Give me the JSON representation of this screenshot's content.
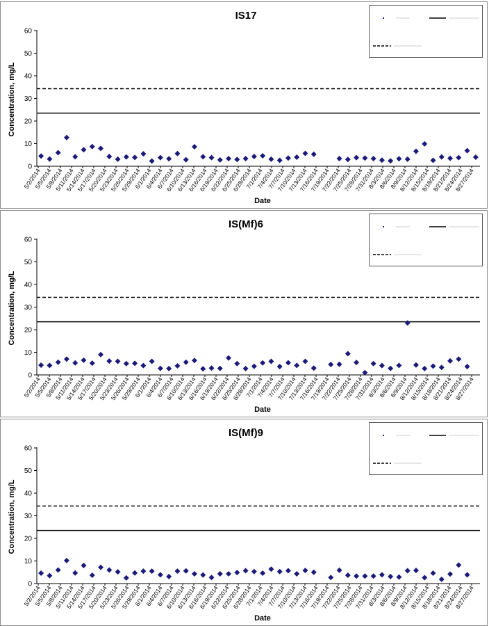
{
  "chart_data": [
    {
      "type": "scatter",
      "title": "IS17",
      "xlabel": "Date",
      "ylabel": "Concentration, mg/L",
      "ylim": [
        0,
        60
      ],
      "yticks": [
        "0",
        "10",
        "20",
        "30",
        "40",
        "50",
        "60"
      ],
      "xticks": [
        "5/2/2014",
        "5/5/2014",
        "5/8/2014",
        "5/11/2014",
        "5/14/2014",
        "5/17/2014",
        "5/20/2014",
        "5/23/2014",
        "5/26/2014",
        "5/29/2014",
        "6/1/2014",
        "6/4/2014",
        "6/7/2014",
        "6/10/2014",
        "6/13/2014",
        "6/16/2014",
        "6/19/2014",
        "6/22/2014",
        "6/25/2014",
        "6/28/2014",
        "7/1/2014",
        "7/4/2014",
        "7/7/2014",
        "7/10/2014",
        "7/13/2014",
        "7/16/2014",
        "7/19/2014",
        "7/22/2014",
        "7/25/2014",
        "7/28/2014",
        "7/31/2014",
        "8/3/2014",
        "8/6/2014",
        "8/9/2014",
        "8/12/2014",
        "8/15/2014",
        "8/18/2014",
        "8/21/2014",
        "8/24/2014",
        "8/27/2014"
      ],
      "legend": {
        "placement": "top-right",
        "entries": [
          "",
          "",
          ""
        ]
      },
      "grid": false,
      "lines": [
        {
          "style": "solid",
          "y": 23.5
        },
        {
          "style": "dashed",
          "y": 34.3
        }
      ],
      "series": [
        {
          "marker": "diamond",
          "color": "#1a1a7a",
          "points": [
            [
              0,
              4.5
            ],
            [
              1,
              3.2
            ],
            [
              2,
              6
            ],
            [
              3,
              12.7
            ],
            [
              4,
              4.2
            ],
            [
              5,
              7.3
            ],
            [
              6,
              8.7
            ],
            [
              7,
              7.9
            ],
            [
              8,
              4.3
            ],
            [
              9,
              3.1
            ],
            [
              10,
              4.1
            ],
            [
              11,
              3.9
            ],
            [
              12,
              5.5
            ],
            [
              13,
              2.3
            ],
            [
              14,
              3.8
            ],
            [
              15,
              3.3
            ],
            [
              16,
              5.6
            ],
            [
              17,
              2.9
            ],
            [
              18,
              8.6
            ],
            [
              19,
              4.2
            ],
            [
              20,
              3.8
            ],
            [
              21,
              2.8
            ],
            [
              22,
              3.4
            ],
            [
              23,
              3.0
            ],
            [
              24,
              3.4
            ],
            [
              25,
              4.3
            ],
            [
              26,
              4.6
            ],
            [
              27,
              3.1
            ],
            [
              28,
              2.6
            ],
            [
              29,
              3.6
            ],
            [
              30,
              4.0
            ],
            [
              31,
              5.7
            ],
            [
              32,
              5.3
            ],
            [
              35,
              3.4
            ],
            [
              36,
              3.0
            ],
            [
              37,
              3.8
            ],
            [
              38,
              3.6
            ],
            [
              39,
              3.4
            ],
            [
              40,
              2.7
            ],
            [
              41,
              2.4
            ],
            [
              42,
              3.3
            ],
            [
              43,
              3.1
            ],
            [
              44,
              6.6
            ],
            [
              45,
              9.9
            ],
            [
              46,
              2.6
            ],
            [
              47,
              4.1
            ],
            [
              48,
              3.5
            ],
            [
              49,
              3.8
            ],
            [
              50,
              6.9
            ],
            [
              51,
              4.0
            ]
          ]
        }
      ]
    },
    {
      "type": "scatter",
      "title": "IS(Mf)6",
      "xlabel": "Date",
      "ylabel": "Concentration, mg/L",
      "ylim": [
        0,
        60
      ],
      "yticks": [
        "0",
        "10",
        "20",
        "30",
        "40",
        "50",
        "60"
      ],
      "xticks": [
        "5/2/2014",
        "5/5/2014",
        "5/8/2014",
        "5/11/2014",
        "5/14/2014",
        "5/17/2014",
        "5/20/2014",
        "5/23/2014",
        "5/26/2014",
        "5/29/2014",
        "6/1/2014",
        "6/4/2014",
        "6/7/2014",
        "6/10/2014",
        "6/13/2014",
        "6/16/2014",
        "6/19/2014",
        "6/22/2014",
        "6/25/2014",
        "6/28/2014",
        "7/1/2014",
        "7/4/2014",
        "7/7/2014",
        "7/10/2014",
        "7/13/2014",
        "7/16/2014",
        "7/19/2014",
        "7/22/2014",
        "7/25/2014",
        "7/28/2014",
        "7/31/2014",
        "8/3/2014",
        "8/6/2014",
        "8/9/2014",
        "8/12/2014",
        "8/15/2014",
        "8/18/2014",
        "8/21/2014",
        "8/24/2014",
        "8/27/2014"
      ],
      "legend": {
        "placement": "top-right",
        "entries": [
          "",
          "",
          ""
        ]
      },
      "grid": false,
      "lines": [
        {
          "style": "solid",
          "y": 23.5
        },
        {
          "style": "dashed",
          "y": 34.3
        }
      ],
      "series": [
        {
          "marker": "diamond",
          "color": "#1a1a7a",
          "points": [
            [
              0,
              4.3
            ],
            [
              1,
              4.2
            ],
            [
              2,
              5.6
            ],
            [
              3,
              7.0
            ],
            [
              4,
              5.3
            ],
            [
              5,
              6.5
            ],
            [
              6,
              5.2
            ],
            [
              7,
              9.0
            ],
            [
              8,
              6.1
            ],
            [
              9,
              6.0
            ],
            [
              10,
              5.0
            ],
            [
              11,
              5.1
            ],
            [
              12,
              4.1
            ],
            [
              13,
              6.0
            ],
            [
              14,
              2.9
            ],
            [
              15,
              2.8
            ],
            [
              16,
              4.0
            ],
            [
              17,
              5.6
            ],
            [
              18,
              6.4
            ],
            [
              19,
              2.7
            ],
            [
              20,
              3.0
            ],
            [
              21,
              2.9
            ],
            [
              22,
              7.5
            ],
            [
              23,
              5.0
            ],
            [
              24,
              2.8
            ],
            [
              25,
              3.8
            ],
            [
              26,
              5.3
            ],
            [
              27,
              6.0
            ],
            [
              28,
              3.7
            ],
            [
              29,
              5.4
            ],
            [
              30,
              4.2
            ],
            [
              31,
              6.0
            ],
            [
              32,
              3.0
            ],
            [
              34,
              4.6
            ],
            [
              35,
              4.7
            ],
            [
              36,
              9.4
            ],
            [
              37,
              5.5
            ],
            [
              38,
              1.0
            ],
            [
              39,
              5.0
            ],
            [
              40,
              4.1
            ],
            [
              41,
              2.9
            ],
            [
              42,
              4.2
            ],
            [
              43,
              23.0
            ],
            [
              44,
              4.4
            ],
            [
              45,
              2.8
            ],
            [
              46,
              3.9
            ],
            [
              47,
              3.3
            ],
            [
              48,
              6.2
            ],
            [
              49,
              7.0
            ],
            [
              50,
              3.7
            ]
          ]
        }
      ]
    },
    {
      "type": "scatter",
      "title": "IS(Mf)9",
      "xlabel": "Date",
      "ylabel": "Concentration, mg/L",
      "ylim": [
        0,
        60
      ],
      "yticks": [
        "0",
        "10",
        "20",
        "30",
        "40",
        "50",
        "60"
      ],
      "xticks": [
        "5/2/2014",
        "5/5/2014",
        "5/8/2014",
        "5/11/2014",
        "5/14/2014",
        "5/17/2014",
        "5/20/2014",
        "5/23/2014",
        "5/26/2014",
        "5/29/2014",
        "6/1/2014",
        "6/4/2014",
        "6/7/2014",
        "6/10/2014",
        "6/13/2014",
        "6/16/2014",
        "6/19/2014",
        "6/22/2014",
        "6/25/2014",
        "6/28/2014",
        "7/1/2014",
        "7/4/2014",
        "7/7/2014",
        "7/10/2014",
        "7/13/2014",
        "7/16/2014",
        "7/19/2014",
        "7/22/2014",
        "7/25/2014",
        "7/28/2014",
        "7/31/2014",
        "8/3/2014",
        "8/6/2014",
        "8/9/2014",
        "8/12/2014",
        "8/15/2014",
        "8/18/2014",
        "8/21/2014",
        "8/24/2014",
        "8/27/2014"
      ],
      "legend": {
        "placement": "top-right",
        "entries": [
          "",
          "",
          ""
        ]
      },
      "grid": false,
      "lines": [
        {
          "style": "solid",
          "y": 23.5
        },
        {
          "style": "dashed",
          "y": 34.3
        }
      ],
      "series": [
        {
          "marker": "diamond",
          "color": "#1a1a7a",
          "points": [
            [
              0,
              4.6
            ],
            [
              1,
              3.5
            ],
            [
              2,
              6.0
            ],
            [
              3,
              10.2
            ],
            [
              4,
              4.7
            ],
            [
              5,
              8.0
            ],
            [
              6,
              3.7
            ],
            [
              7,
              7.2
            ],
            [
              8,
              6.0
            ],
            [
              9,
              5.2
            ],
            [
              10,
              2.5
            ],
            [
              11,
              4.7
            ],
            [
              12,
              5.5
            ],
            [
              13,
              5.5
            ],
            [
              14,
              3.9
            ],
            [
              15,
              3.1
            ],
            [
              16,
              5.5
            ],
            [
              17,
              5.6
            ],
            [
              18,
              4.3
            ],
            [
              19,
              3.8
            ],
            [
              20,
              2.7
            ],
            [
              21,
              4.3
            ],
            [
              22,
              4.3
            ],
            [
              23,
              4.9
            ],
            [
              24,
              5.7
            ],
            [
              25,
              5.3
            ],
            [
              26,
              4.6
            ],
            [
              27,
              6.4
            ],
            [
              28,
              5.3
            ],
            [
              29,
              5.7
            ],
            [
              30,
              4.3
            ],
            [
              31,
              5.8
            ],
            [
              32,
              5.0
            ],
            [
              34,
              2.7
            ],
            [
              35,
              5.9
            ],
            [
              36,
              3.7
            ],
            [
              37,
              3.3
            ],
            [
              38,
              3.3
            ],
            [
              39,
              3.3
            ],
            [
              40,
              3.9
            ],
            [
              41,
              3.1
            ],
            [
              42,
              2.9
            ],
            [
              43,
              5.7
            ],
            [
              44,
              5.8
            ],
            [
              45,
              2.6
            ],
            [
              46,
              4.6
            ],
            [
              47,
              1.9
            ],
            [
              48,
              4.2
            ],
            [
              49,
              8.2
            ],
            [
              50,
              3.9
            ]
          ]
        }
      ]
    }
  ]
}
